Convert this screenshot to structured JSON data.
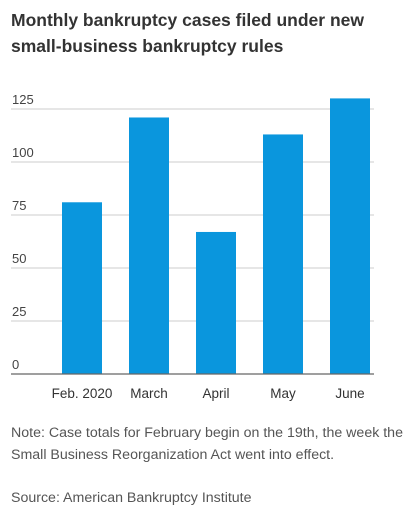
{
  "title": "Monthly bankruptcy cases filed under new small-business bankruptcy rules",
  "note": "Note: Case totals for February begin on the 19th, the week the Small Business Reorganization Act went into effect.",
  "source": "Source: American Bankruptcy Institute",
  "colors": {
    "bar": "#0a96dd",
    "grid": "#cccccc",
    "axis": "#666666"
  },
  "chart_data": {
    "type": "bar",
    "title": "Monthly bankruptcy cases filed under new small-business bankruptcy rules",
    "categories": [
      "Feb. 2020",
      "March",
      "April",
      "May",
      "June"
    ],
    "values": [
      81,
      121,
      67,
      113,
      130
    ],
    "xlabel": "",
    "ylabel": "",
    "ylim": [
      0,
      130
    ],
    "yticks": [
      "0",
      "25",
      "50",
      "75",
      "100",
      "125"
    ],
    "grid": true,
    "legend": "none"
  }
}
